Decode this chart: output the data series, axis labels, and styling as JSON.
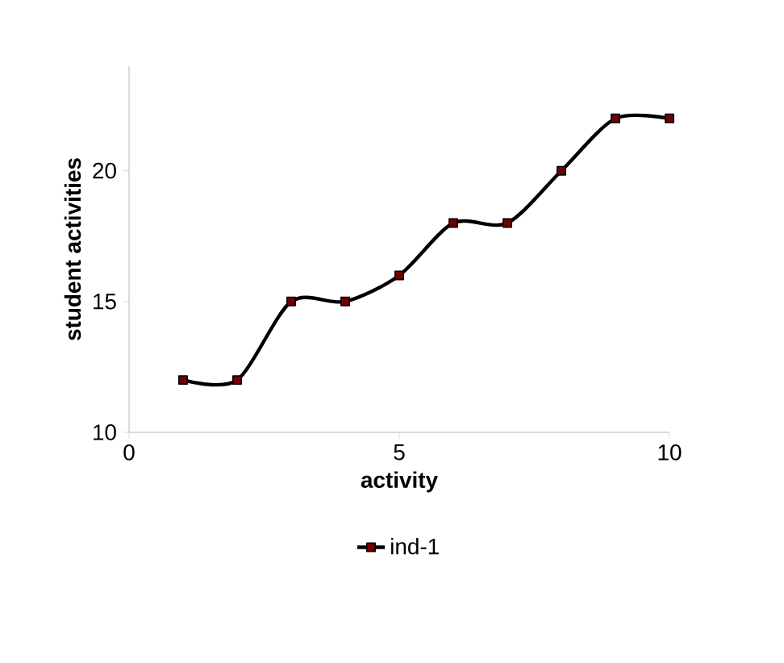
{
  "chart_data": {
    "type": "line",
    "xlabel": "activity",
    "ylabel": "student activities",
    "x": [
      1,
      2,
      3,
      4,
      5,
      6,
      7,
      8,
      9,
      10
    ],
    "series": [
      {
        "name": "ind-1",
        "color": "#000000",
        "values": [
          12,
          12,
          15,
          15,
          16,
          18,
          18,
          20,
          22,
          22
        ]
      }
    ],
    "xlim": [
      0,
      10
    ],
    "xticks": [
      0,
      5,
      10
    ],
    "ylim": [
      10,
      24
    ],
    "yticks": [
      10,
      15,
      20
    ],
    "legend": "bottom",
    "marker": "square",
    "line_style": "solid"
  }
}
